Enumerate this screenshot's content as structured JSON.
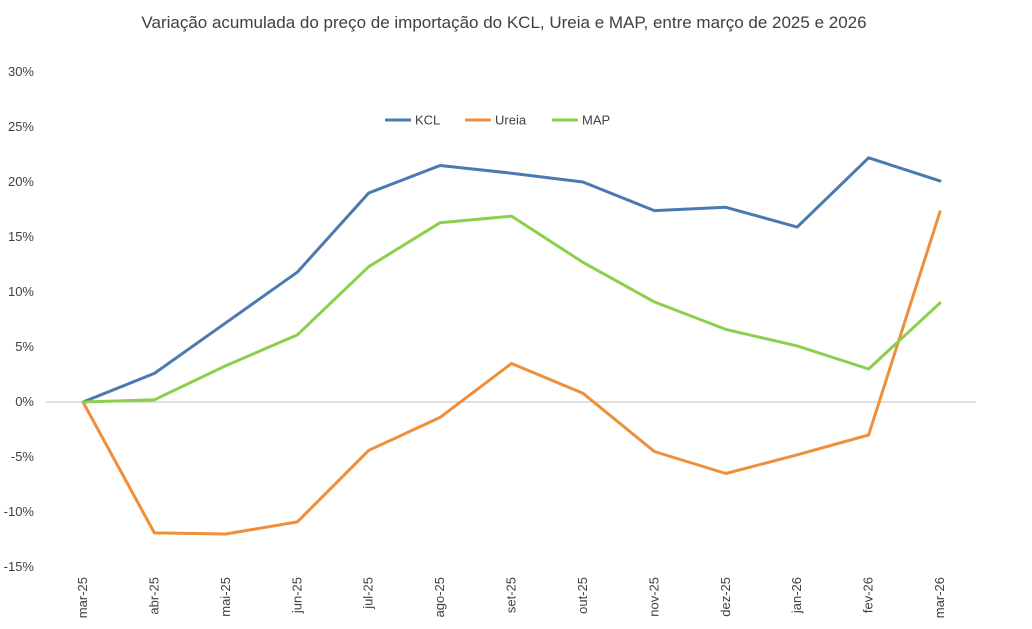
{
  "chart_data": {
    "type": "line",
    "title": "Variação acumulada do preço de importação do KCL, Ureia e MAP, entre março de 2025 e 2026",
    "xlabel": "",
    "ylabel": "",
    "categories": [
      "mar-25",
      "abr-25",
      "mai-25",
      "jun-25",
      "jul-25",
      "ago-25",
      "set-25",
      "out-25",
      "nov-25",
      "dez-25",
      "jan-26",
      "fev-26",
      "mar-26"
    ],
    "ylim": [
      -15,
      30
    ],
    "yticks": [
      -15,
      -10,
      -5,
      0,
      5,
      10,
      15,
      20,
      25,
      30
    ],
    "ytick_labels": [
      "-15%",
      "-10%",
      "-5%",
      "0%",
      "5%",
      "10%",
      "15%",
      "20%",
      "25%",
      "30%"
    ],
    "grid": false,
    "legend_position": "top-center",
    "series": [
      {
        "name": "KCL",
        "color": "#4a7ab0",
        "values": [
          0,
          2.6,
          7.2,
          11.8,
          19.0,
          21.5,
          20.8,
          20.0,
          17.4,
          17.7,
          15.9,
          22.2,
          20.1
        ]
      },
      {
        "name": "Ureia",
        "color": "#ef8f3b",
        "values": [
          0,
          -11.9,
          -12.0,
          -10.9,
          -4.4,
          -1.4,
          3.5,
          0.8,
          -4.5,
          -6.5,
          -4.8,
          -3.0,
          17.3
        ]
      },
      {
        "name": "MAP",
        "color": "#8ccf4d",
        "values": [
          0,
          0.2,
          3.3,
          6.1,
          12.3,
          16.3,
          16.9,
          12.7,
          9.1,
          6.6,
          5.1,
          3.0,
          9.0
        ]
      }
    ]
  }
}
